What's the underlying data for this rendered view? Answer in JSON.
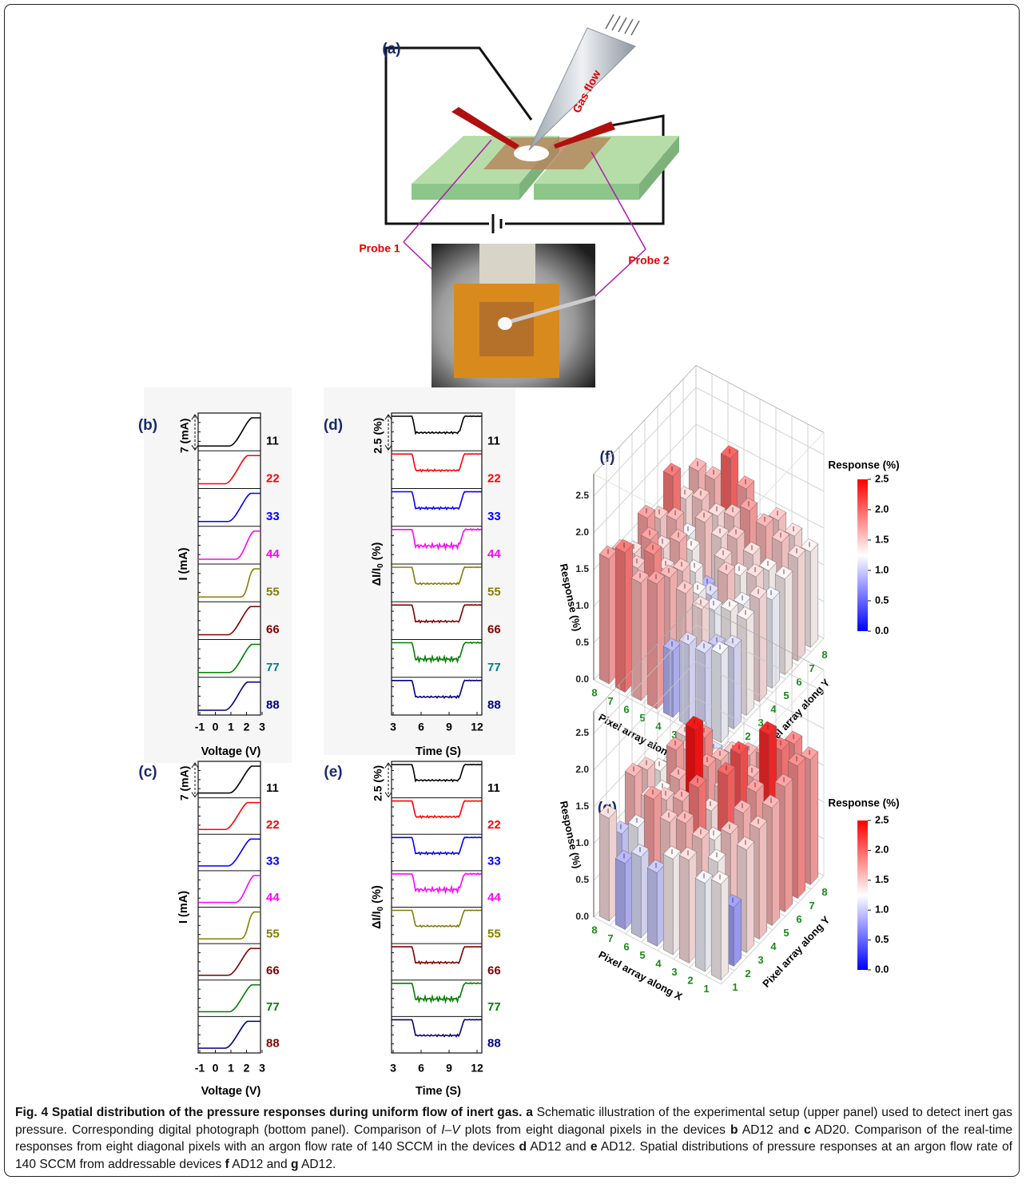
{
  "panel_a": {
    "label": "(a)",
    "gas_flow": "Gas flow",
    "probe1": "Probe 1",
    "probe2": "Probe 2"
  },
  "panel_b": {
    "label": "(b)",
    "scale_label": "7 (mA)",
    "y_label": {
      "main": "I (mA)",
      "sub": "",
      "unit": ""
    },
    "rows": [
      "11",
      "22",
      "33",
      "44",
      "55",
      "66",
      "77",
      "88"
    ],
    "row_colors": [
      "#000000",
      "#ff0000",
      "#0000ff",
      "#ff00ff",
      "#808000",
      "#800000",
      "#008000",
      "#000080"
    ],
    "row_label_colors": [
      "#000000",
      "#ff0000",
      "#0000ff",
      "#ff00ff",
      "#808000",
      "#800000",
      "#008080",
      "#000080"
    ],
    "x_ticks": [
      "-1",
      "0",
      "1",
      "2",
      "3"
    ],
    "x_label": "Voltage (V)"
  },
  "panel_c": {
    "label": "(c)",
    "scale_label": "7 (mA)",
    "y_label": {
      "main": "I (mA)",
      "sub": "",
      "unit": ""
    },
    "rows": [
      "11",
      "22",
      "33",
      "44",
      "55",
      "66",
      "77",
      "88"
    ],
    "row_colors": [
      "#000000",
      "#ff0000",
      "#0000ff",
      "#ff00ff",
      "#808000",
      "#800000",
      "#008000",
      "#000080"
    ],
    "row_label_colors": [
      "#000000",
      "#ff0000",
      "#0000ff",
      "#ff00ff",
      "#808000",
      "#800000",
      "#008000",
      "#800000"
    ],
    "x_ticks": [
      "-1",
      "0",
      "1",
      "2",
      "3"
    ],
    "x_label": "Voltage (V)"
  },
  "panel_d": {
    "label": "(d)",
    "scale_label": "2.5 (%)",
    "y_label": {
      "main": "ΔI/I",
      "sub": "0",
      "unit": " (%)"
    },
    "rows": [
      "11",
      "22",
      "33",
      "44",
      "55",
      "66",
      "77",
      "88"
    ],
    "row_colors": [
      "#000000",
      "#ff0000",
      "#0000ff",
      "#ff00ff",
      "#808000",
      "#800000",
      "#008000",
      "#000080"
    ],
    "row_label_colors": [
      "#000000",
      "#ff0000",
      "#0000ff",
      "#ff00ff",
      "#808000",
      "#800000",
      "#008080",
      "#000080"
    ],
    "x_ticks": [
      "3",
      "6",
      "9",
      "12"
    ],
    "x_label": "Time (S)"
  },
  "panel_e": {
    "label": "(e)",
    "scale_label": "2.5 (%)",
    "y_label": {
      "main": "ΔI/I",
      "sub": "0",
      "unit": " (%)"
    },
    "rows": [
      "11",
      "22",
      "33",
      "44",
      "55",
      "66",
      "77",
      "88"
    ],
    "row_colors": [
      "#000000",
      "#ff0000",
      "#0000ff",
      "#ff00ff",
      "#808000",
      "#800000",
      "#008000",
      "#000080"
    ],
    "row_label_colors": [
      "#000000",
      "#ff0000",
      "#0000ff",
      "#ff00ff",
      "#808000",
      "#800000",
      "#008000",
      "#000080"
    ],
    "x_ticks": [
      "3",
      "6",
      "9",
      "12"
    ],
    "x_label": "Time (S)"
  },
  "panel_f": {
    "label": "(f)",
    "colorbar_title": "Response (%)",
    "colorbar_ticks": [
      "2.5",
      "2.0",
      "1.5",
      "1.0",
      "0.5",
      "0.0"
    ],
    "colormap": [
      "#0000ff",
      "#ffffff",
      "#ff0000"
    ],
    "z_label": "Response (%)",
    "z_ticks": [
      "0.0",
      "0.5",
      "1.0",
      "1.5",
      "2.0",
      "2.5"
    ],
    "x_label": "Pixel array along X",
    "x_ticks": [
      "1",
      "2",
      "3",
      "4",
      "5",
      "6",
      "7",
      "8"
    ],
    "y_label": "Pixel array along Y",
    "y_ticks": [
      "1",
      "2",
      "3",
      "4",
      "5",
      "6",
      "7",
      "8"
    ],
    "values": [
      [
        1.2,
        1.1,
        1.3,
        1.4,
        1.2,
        1.3,
        1.4,
        1.3
      ],
      [
        1.1,
        1.0,
        1.3,
        1.2,
        1.4,
        1.3,
        1.5,
        1.4
      ],
      [
        1.1,
        1.4,
        1.2,
        1.5,
        1.3,
        1.4,
        1.6,
        1.5
      ],
      [
        0.9,
        1.5,
        1.3,
        1.1,
        1.4,
        1.5,
        1.7,
        1.3
      ],
      [
        1.7,
        1.6,
        1.5,
        1.3,
        0.9,
        1.4,
        1.5,
        1.7
      ],
      [
        1.6,
        1.8,
        1.4,
        1.6,
        1.3,
        1.5,
        1.4,
        2.0
      ],
      [
        1.9,
        1.5,
        1.7,
        1.4,
        1.6,
        1.2,
        1.5,
        1.6
      ],
      [
        1.7,
        1.6,
        1.4,
        1.7,
        1.5,
        1.9,
        1.4,
        1.6
      ]
    ]
  },
  "panel_g": {
    "label": "(g)",
    "colorbar_title": "Response (%)",
    "colorbar_ticks": [
      "2.5",
      "2.0",
      "1.5",
      "1.0",
      "0.5",
      "0.0"
    ],
    "colormap": [
      "#0000ff",
      "#ffffff",
      "#ff0000"
    ],
    "z_label": "Response (%)",
    "z_ticks": [
      "0.0",
      "0.5",
      "1.0",
      "1.5",
      "2.0",
      "2.5"
    ],
    "x_label": "Pixel array along X",
    "x_ticks": [
      "1",
      "2",
      "3",
      "4",
      "5",
      "6",
      "7",
      "8"
    ],
    "y_label": "Pixel array along Y",
    "y_ticks": [
      "1",
      "2",
      "3",
      "4",
      "5",
      "6",
      "7",
      "8"
    ],
    "values": [
      [
        1.3,
        0.8,
        1.4,
        1.5,
        1.6,
        1.7,
        1.8,
        1.7
      ],
      [
        1.2,
        1.3,
        1.5,
        1.6,
        1.7,
        2.3,
        1.9,
        1.8
      ],
      [
        1.4,
        1.5,
        1.3,
        2.0,
        2.1,
        1.6,
        1.7,
        1.5
      ],
      [
        1.3,
        1.6,
        1.9,
        1.4,
        1.5,
        1.2,
        1.6,
        1.4
      ],
      [
        1.0,
        1.5,
        1.6,
        2.4,
        1.7,
        1.6,
        1.5,
        1.3
      ],
      [
        1.1,
        1.7,
        1.5,
        1.6,
        1.4,
        1.8,
        1.3,
        1.2
      ],
      [
        0.9,
        1.2,
        1.4,
        1.3,
        1.7,
        1.5,
        1.2,
        1.1
      ],
      [
        1.4,
        1.0,
        1.6,
        1.5,
        1.3,
        1.2,
        1.4,
        1.3
      ]
    ]
  },
  "caption": {
    "runs": [
      {
        "text": "Fig. 4 Spatial distribution of the pressure responses during uniform flow of inert gas. a",
        "style": "bold"
      },
      {
        "text": " Schematic illustration of the experimental setup (upper panel) used to detect inert gas pressure. Corresponding digital photograph (bottom panel). Comparison of ",
        "style": "normal"
      },
      {
        "text": "I–V",
        "style": "italic"
      },
      {
        "text": " plots from eight diagonal pixels in the devices ",
        "style": "normal"
      },
      {
        "text": "b",
        "style": "bold"
      },
      {
        "text": " AD12 and ",
        "style": "normal"
      },
      {
        "text": "c",
        "style": "bold"
      },
      {
        "text": " AD20. Comparison of the real-time responses from eight diagonal pixels with an argon flow rate of 140 SCCM in the devices ",
        "style": "normal"
      },
      {
        "text": "d",
        "style": "bold"
      },
      {
        "text": " AD12 and ",
        "style": "normal"
      },
      {
        "text": "e",
        "style": "bold"
      },
      {
        "text": " AD12. Spatial distributions of pressure responses at an argon flow rate of 140 SCCM from addressable devices ",
        "style": "normal"
      },
      {
        "text": "f",
        "style": "bold"
      },
      {
        "text": " AD12 and ",
        "style": "normal"
      },
      {
        "text": "g",
        "style": "bold"
      },
      {
        "text": " AD12.",
        "style": "normal"
      }
    ]
  }
}
